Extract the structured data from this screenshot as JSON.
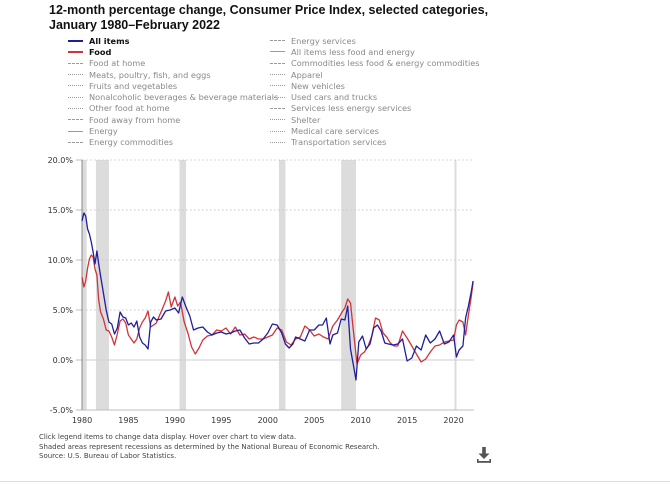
{
  "title_line1": "12-month percentage change, Consumer Price Index, selected categories,",
  "title_line2": "January 1980–February 2022",
  "legend": {
    "col1": [
      {
        "label": "All items",
        "style": "solid",
        "color": "#1f1f9e",
        "active": true
      },
      {
        "label": "Food",
        "style": "solid",
        "color": "#d0343c",
        "active": true
      },
      {
        "label": "Food at home",
        "style": "dashed",
        "color": "#9a9a9a",
        "active": false
      },
      {
        "label": "Meats, poultry, fish, and eggs",
        "style": "dotted",
        "color": "#9a9a9a",
        "active": false
      },
      {
        "label": "Fruits and vegetables",
        "style": "dotted",
        "color": "#9a9a9a",
        "active": false
      },
      {
        "label": "Nonalcoholic beverages & beverage materials",
        "style": "dotted",
        "color": "#9a9a9a",
        "active": false
      },
      {
        "label": "Other food at home",
        "style": "dotted",
        "color": "#9a9a9a",
        "active": false
      },
      {
        "label": "Food away from home",
        "style": "dashed",
        "color": "#9a9a9a",
        "active": false
      },
      {
        "label": "Energy",
        "style": "solid",
        "color": "#9a9a9a",
        "active": false
      },
      {
        "label": "Energy commodities",
        "style": "dashed",
        "color": "#9a9a9a",
        "active": false
      }
    ],
    "col2": [
      {
        "label": "Energy services",
        "style": "dashed",
        "color": "#9a9a9a",
        "active": false
      },
      {
        "label": "All items less food and energy",
        "style": "solid",
        "color": "#9a9a9a",
        "active": false
      },
      {
        "label": "Commodities less food & energy commodities",
        "style": "dashed",
        "color": "#9a9a9a",
        "active": false
      },
      {
        "label": "Apparel",
        "style": "dotted",
        "color": "#9a9a9a",
        "active": false
      },
      {
        "label": "New vehicles",
        "style": "dotted",
        "color": "#9a9a9a",
        "active": false
      },
      {
        "label": "Used cars and trucks",
        "style": "dotted",
        "color": "#9a9a9a",
        "active": false
      },
      {
        "label": "Services less energy services",
        "style": "dashed",
        "color": "#9a9a9a",
        "active": false
      },
      {
        "label": "Shelter",
        "style": "dotted",
        "color": "#9a9a9a",
        "active": false
      },
      {
        "label": "Medical care services",
        "style": "dotted",
        "color": "#9a9a9a",
        "active": false
      },
      {
        "label": "Transportation services",
        "style": "dotted",
        "color": "#9a9a9a",
        "active": false
      }
    ]
  },
  "notes": [
    "Click legend items to change data display. Hover over chart to view data.",
    "Shaded areas represent recessions as determined by the National Bureau of Economic Research.",
    "Source: U.S. Bureau of Labor Statistics."
  ],
  "download_icon": "download-icon",
  "chart_data": {
    "type": "line",
    "title": "12-month percentage change, Consumer Price Index, selected categories, January 1980–February 2022",
    "xlabel": "",
    "ylabel": "",
    "xlim": [
      1980.0,
      2022.2
    ],
    "ylim": [
      -5,
      20
    ],
    "yticks": [
      -5,
      0,
      5,
      10,
      15,
      20
    ],
    "ytick_labels": [
      "-5.0%",
      "0.0%",
      "5.0%",
      "10.0%",
      "15.0%",
      "20.0%"
    ],
    "xticks": [
      1980,
      1985,
      1990,
      1995,
      2000,
      2005,
      2010,
      2015,
      2020
    ],
    "xtick_labels": [
      "1980",
      "1985",
      "1990",
      "1995",
      "2000",
      "2005",
      "2010",
      "2015",
      "2020"
    ],
    "grid": "horizontal-dotted",
    "recessions": [
      [
        1980.0,
        1980.5
      ],
      [
        1981.5,
        1982.9
      ],
      [
        1990.5,
        1991.2
      ],
      [
        2001.2,
        2001.9
      ],
      [
        2007.9,
        2009.5
      ],
      [
        2020.1,
        2020.3
      ]
    ],
    "series": [
      {
        "name": "All items",
        "color": "#1f1f9e",
        "x": [
          1980.0,
          1980.2,
          1980.4,
          1980.6,
          1980.8,
          1981.0,
          1981.2,
          1981.4,
          1981.6,
          1981.8,
          1982.0,
          1982.3,
          1982.6,
          1982.9,
          1983.2,
          1983.5,
          1983.8,
          1984.1,
          1984.4,
          1984.7,
          1985.0,
          1985.3,
          1985.6,
          1985.9,
          1986.2,
          1986.5,
          1986.8,
          1987.1,
          1987.4,
          1987.7,
          1988.0,
          1988.5,
          1989.0,
          1989.5,
          1990.0,
          1990.4,
          1990.8,
          1991.2,
          1991.6,
          1992.0,
          1992.5,
          1993.0,
          1993.5,
          1994.0,
          1994.5,
          1995.0,
          1995.5,
          1996.0,
          1996.5,
          1997.0,
          1997.5,
          1998.0,
          1998.5,
          1999.0,
          1999.5,
          2000.0,
          2000.5,
          2001.0,
          2001.5,
          2001.9,
          2002.3,
          2002.7,
          2003.0,
          2003.5,
          2004.0,
          2004.5,
          2005.0,
          2005.5,
          2005.9,
          2006.3,
          2006.7,
          2007.0,
          2007.5,
          2007.9,
          2008.3,
          2008.6,
          2008.9,
          2009.2,
          2009.5,
          2009.8,
          2010.2,
          2010.6,
          2011.0,
          2011.4,
          2011.8,
          2012.2,
          2012.6,
          2013.0,
          2013.5,
          2014.0,
          2014.5,
          2015.0,
          2015.5,
          2016.0,
          2016.5,
          2017.0,
          2017.5,
          2018.0,
          2018.5,
          2019.0,
          2019.5,
          2020.0,
          2020.3,
          2020.6,
          2021.0,
          2021.3,
          2021.6,
          2021.9,
          2022.1
        ],
        "values": [
          13.9,
          14.7,
          14.4,
          13.1,
          12.6,
          11.8,
          10.8,
          9.6,
          10.9,
          9.6,
          8.4,
          6.7,
          5.0,
          3.8,
          3.6,
          2.6,
          3.2,
          4.8,
          4.3,
          4.2,
          3.5,
          3.7,
          3.3,
          3.9,
          2.3,
          1.7,
          1.5,
          1.1,
          3.8,
          4.3,
          4.0,
          4.1,
          4.9,
          5.0,
          5.2,
          4.7,
          6.3,
          5.3,
          4.4,
          3.0,
          3.2,
          3.3,
          2.8,
          2.5,
          2.7,
          2.8,
          2.6,
          2.7,
          2.9,
          3.0,
          2.2,
          1.6,
          1.7,
          1.7,
          2.1,
          2.7,
          3.6,
          3.5,
          2.7,
          1.6,
          1.2,
          1.6,
          2.3,
          2.1,
          1.9,
          3.0,
          3.0,
          3.5,
          3.5,
          4.2,
          1.6,
          2.5,
          2.7,
          4.1,
          4.0,
          5.4,
          1.1,
          -0.4,
          -2.0,
          1.8,
          2.4,
          1.1,
          1.6,
          3.2,
          3.5,
          2.9,
          1.7,
          1.6,
          1.5,
          1.6,
          2.1,
          -0.1,
          0.2,
          1.4,
          1.0,
          2.5,
          1.7,
          2.1,
          2.9,
          1.6,
          1.8,
          2.5,
          0.3,
          1.0,
          1.4,
          4.2,
          5.4,
          6.8,
          7.9
        ]
      },
      {
        "name": "Food",
        "color": "#d0343c",
        "x": [
          1980.0,
          1980.2,
          1980.4,
          1980.6,
          1980.8,
          1981.0,
          1981.2,
          1981.4,
          1981.6,
          1981.8,
          1982.0,
          1982.3,
          1982.6,
          1982.9,
          1983.2,
          1983.5,
          1983.8,
          1984.1,
          1984.4,
          1984.7,
          1985.0,
          1985.3,
          1985.6,
          1985.9,
          1986.2,
          1986.5,
          1986.8,
          1987.1,
          1987.4,
          1987.7,
          1988.0,
          1988.5,
          1989.0,
          1989.3,
          1989.6,
          1990.0,
          1990.3,
          1990.6,
          1991.0,
          1991.4,
          1991.8,
          1992.2,
          1992.6,
          1993.0,
          1993.5,
          1994.0,
          1994.5,
          1995.0,
          1995.5,
          1996.0,
          1996.5,
          1997.0,
          1997.5,
          1998.0,
          1998.5,
          1999.0,
          1999.5,
          2000.0,
          2000.5,
          2001.0,
          2001.5,
          2002.0,
          2002.5,
          2003.0,
          2003.5,
          2004.0,
          2004.5,
          2005.0,
          2005.5,
          2006.0,
          2006.5,
          2007.0,
          2007.5,
          2008.0,
          2008.3,
          2008.6,
          2008.9,
          2009.2,
          2009.6,
          2010.0,
          2010.4,
          2010.8,
          2011.2,
          2011.6,
          2012.0,
          2012.4,
          2012.8,
          2013.2,
          2013.6,
          2014.0,
          2014.5,
          2015.0,
          2015.5,
          2016.0,
          2016.5,
          2017.0,
          2017.5,
          2018.0,
          2018.5,
          2019.0,
          2019.5,
          2020.0,
          2020.3,
          2020.6,
          2021.0,
          2021.3,
          2021.6,
          2021.9,
          2022.1
        ],
        "values": [
          8.3,
          7.3,
          7.9,
          9.2,
          10.1,
          10.5,
          10.3,
          9.1,
          8.5,
          6.0,
          4.8,
          4.1,
          3.0,
          2.9,
          2.3,
          1.5,
          2.6,
          3.9,
          4.1,
          3.7,
          2.5,
          2.1,
          1.7,
          2.1,
          3.2,
          3.8,
          4.2,
          4.9,
          3.3,
          3.5,
          3.7,
          4.8,
          5.9,
          6.8,
          5.3,
          6.3,
          5.4,
          5.8,
          3.8,
          2.7,
          1.3,
          0.6,
          1.2,
          2.0,
          2.4,
          2.5,
          3.0,
          2.9,
          3.2,
          2.6,
          3.3,
          2.5,
          2.6,
          2.1,
          2.3,
          2.1,
          2.1,
          2.3,
          2.5,
          3.2,
          3.0,
          1.8,
          1.5,
          2.1,
          2.3,
          3.4,
          3.0,
          2.4,
          2.6,
          2.3,
          2.1,
          3.4,
          4.0,
          4.8,
          5.2,
          6.1,
          5.7,
          3.1,
          -0.4,
          0.5,
          0.8,
          1.4,
          2.4,
          4.2,
          4.0,
          2.7,
          2.3,
          1.7,
          1.4,
          1.4,
          2.9,
          2.2,
          1.4,
          0.6,
          -0.2,
          0.1,
          0.8,
          1.4,
          1.5,
          1.8,
          1.9,
          2.0,
          3.5,
          4.0,
          3.8,
          2.5,
          4.5,
          6.3,
          7.8
        ]
      }
    ]
  }
}
